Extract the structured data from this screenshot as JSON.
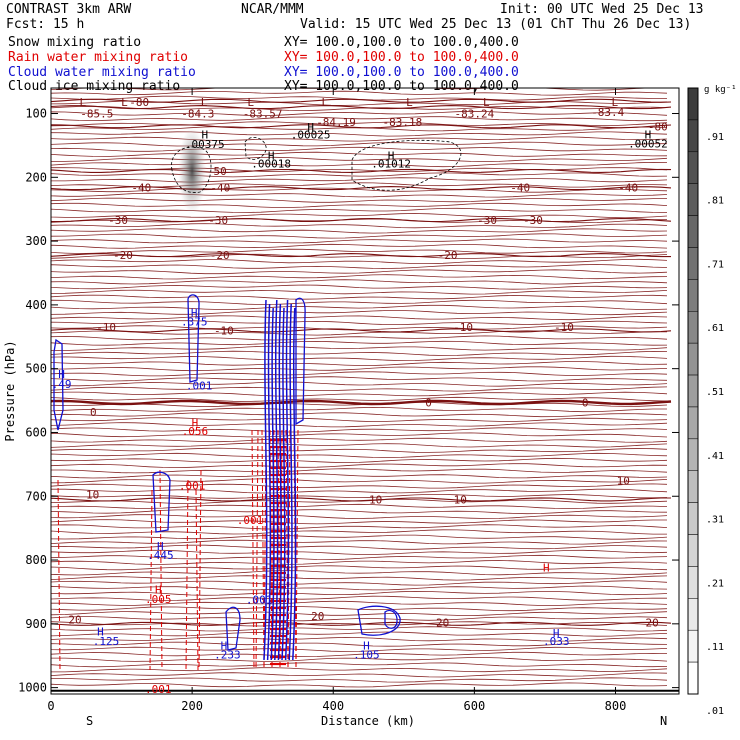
{
  "header": {
    "left_line1": "CONTRAST  3km ARW",
    "left_line2": "Fcst:    15 h",
    "center": "NCAR/MMM",
    "init": "Init: 00 UTC Wed 25 Dec 13",
    "valid": "Valid: 15 UTC Wed 25 Dec 13 (01 ChT Thu 26 Dec 13)",
    "fields": [
      {
        "name": "Snow mixing ratio",
        "xy": "XY= 100.0,100.0 to 100.0,400.0",
        "color": "#000000"
      },
      {
        "name": "Rain water mixing ratio",
        "xy": "XY= 100.0,100.0 to 100.0,400.0",
        "color": "#e00000"
      },
      {
        "name": "Cloud water mixing ratio",
        "xy": "XY= 100.0,100.0 to 100.0,400.0",
        "color": "#1010d0"
      },
      {
        "name": "Cloud ice mixing ratio",
        "xy": "XY= 100.0,100.0 to 100.0,400.0",
        "color": "#000000"
      }
    ]
  },
  "chart_data": {
    "type": "contour cross-section",
    "xlabel": "Distance (km)",
    "ylabel": "Pressure (hPa)",
    "xlim": [
      0,
      890
    ],
    "ylim": [
      1010,
      60
    ],
    "x_ticks": [
      0,
      200,
      400,
      600,
      800
    ],
    "y_ticks": [
      100,
      200,
      300,
      400,
      500,
      600,
      700,
      800,
      900,
      1000
    ],
    "x_end_labels": {
      "left": "S",
      "right": "N"
    },
    "temperature_contours": [
      {
        "label": "-85.5",
        "p": 80
      },
      {
        "label": "-80",
        "p": 90
      },
      {
        "label": "-80",
        "p": 120
      },
      {
        "label": "-50",
        "p": 190
      },
      {
        "label": "-40",
        "p": 217
      },
      {
        "label": "-30",
        "p": 267
      },
      {
        "label": "-20",
        "p": 322
      },
      {
        "label": "-10",
        "p": 440
      },
      {
        "label": "0",
        "p": 553
      },
      {
        "label": "10",
        "p": 705
      },
      {
        "label": "20",
        "p": 900
      }
    ],
    "temperature_labels": [
      {
        "text": "-85.5",
        "x": 65,
        "p": 100
      },
      {
        "text": "-80",
        "x": 125,
        "p": 82
      },
      {
        "text": "-84.3",
        "x": 208,
        "p": 100
      },
      {
        "text": "-83.57",
        "x": 300,
        "p": 100
      },
      {
        "text": "-84.19",
        "x": 404,
        "p": 113
      },
      {
        "text": "-83.18",
        "x": 498,
        "p": 113
      },
      {
        "text": "-83.24",
        "x": 600,
        "p": 100
      },
      {
        "text": "-83.4",
        "x": 789,
        "p": 98
      },
      {
        "text": "-80",
        "x": 860,
        "p": 120
      },
      {
        "text": "-50",
        "x": 235,
        "p": 190
      },
      {
        "text": "-40",
        "x": 128,
        "p": 216
      },
      {
        "text": "-40",
        "x": 240,
        "p": 216
      },
      {
        "text": "-40",
        "x": 665,
        "p": 216
      },
      {
        "text": "-40",
        "x": 818,
        "p": 216
      },
      {
        "text": "-30",
        "x": 95,
        "p": 267
      },
      {
        "text": "-30",
        "x": 237,
        "p": 267
      },
      {
        "text": "-30",
        "x": 618,
        "p": 267
      },
      {
        "text": "-30",
        "x": 683,
        "p": 267
      },
      {
        "text": "-20",
        "x": 102,
        "p": 322
      },
      {
        "text": "-20",
        "x": 239,
        "p": 322
      },
      {
        "text": "-20",
        "x": 562,
        "p": 322
      },
      {
        "text": "-10",
        "x": 78,
        "p": 435
      },
      {
        "text": "-10",
        "x": 245,
        "p": 440
      },
      {
        "text": "-10",
        "x": 584,
        "p": 435
      },
      {
        "text": "-10",
        "x": 727,
        "p": 435
      },
      {
        "text": "0",
        "x": 60,
        "p": 568
      },
      {
        "text": "0",
        "x": 535,
        "p": 553
      },
      {
        "text": "0",
        "x": 757,
        "p": 553
      },
      {
        "text": "10",
        "x": 59,
        "p": 697
      },
      {
        "text": "10",
        "x": 460,
        "p": 705
      },
      {
        "text": "10",
        "x": 580,
        "p": 705
      },
      {
        "text": "10",
        "x": 811,
        "p": 675
      },
      {
        "text": "20",
        "x": 34,
        "p": 893
      },
      {
        "text": "20",
        "x": 378,
        "p": 888
      },
      {
        "text": "20",
        "x": 555,
        "p": 898
      },
      {
        "text": "20",
        "x": 852,
        "p": 898
      }
    ],
    "max_labels": [
      {
        "text": "H",
        "x": 218,
        "p": 133,
        "color": "#000000"
      },
      {
        "text": ".00375",
        "x": 218,
        "p": 148,
        "color": "#000000"
      },
      {
        "text": "H",
        "x": 368,
        "p": 121,
        "color": "#000000"
      },
      {
        "text": ".00025",
        "x": 368,
        "p": 133,
        "color": "#000000"
      },
      {
        "text": "H",
        "x": 312,
        "p": 166,
        "color": "#000000"
      },
      {
        "text": ".00018",
        "x": 312,
        "p": 178,
        "color": "#000000"
      },
      {
        "text": "H",
        "x": 482,
        "p": 166,
        "color": "#000000"
      },
      {
        "text": ".01012",
        "x": 482,
        "p": 178,
        "color": "#000000"
      },
      {
        "text": "H",
        "x": 846,
        "p": 133,
        "color": "#000000"
      },
      {
        "text": ".00052",
        "x": 846,
        "p": 147,
        "color": "#000000"
      },
      {
        "text": "H",
        "x": 203,
        "p": 412,
        "color": "#1010d0"
      },
      {
        "text": ".375",
        "x": 203,
        "p": 426,
        "color": "#1010d0"
      },
      {
        "text": "H",
        "x": 15,
        "p": 508,
        "color": "#1010d0"
      },
      {
        "text": ".49",
        "x": 15,
        "p": 524,
        "color": "#1010d0"
      },
      {
        "text": ".001",
        "x": 210,
        "p": 526,
        "color": "#1010d0"
      },
      {
        "text": "H",
        "x": 155,
        "p": 778,
        "color": "#1010d0"
      },
      {
        "text": ".445",
        "x": 155,
        "p": 792,
        "color": "#1010d0"
      },
      {
        "text": "H",
        "x": 70,
        "p": 912,
        "color": "#1010d0"
      },
      {
        "text": ".125",
        "x": 78,
        "p": 927,
        "color": "#1010d0"
      },
      {
        "text": "H",
        "x": 245,
        "p": 934,
        "color": "#1010d0"
      },
      {
        "text": ".233",
        "x": 250,
        "p": 948,
        "color": "#1010d0"
      },
      {
        "text": "H",
        "x": 447,
        "p": 934,
        "color": "#1010d0"
      },
      {
        "text": ".105",
        "x": 447,
        "p": 948,
        "color": "#1010d0"
      },
      {
        "text": "H",
        "x": 716,
        "p": 914,
        "color": "#1010d0"
      },
      {
        "text": ".033",
        "x": 716,
        "p": 927,
        "color": "#1010d0"
      },
      {
        "text": ".001",
        "x": 295,
        "p": 862,
        "color": "#1010d0"
      },
      {
        "text": "H",
        "x": 204,
        "p": 584,
        "color": "#e00000"
      },
      {
        "text": ".056",
        "x": 204,
        "p": 598,
        "color": "#e00000"
      },
      {
        "text": ".001",
        "x": 200,
        "p": 683,
        "color": "#e00000"
      },
      {
        "text": ".001",
        "x": 282,
        "p": 737,
        "color": "#e00000"
      },
      {
        "text": "H",
        "x": 152,
        "p": 846,
        "color": "#e00000"
      },
      {
        "text": ".005",
        "x": 152,
        "p": 861,
        "color": "#e00000"
      },
      {
        "text": ".001",
        "x": 152,
        "p": 1002,
        "color": "#e00000"
      },
      {
        "text": "H",
        "x": 702,
        "p": 812,
        "color": "#e00000"
      }
    ],
    "colorbar": {
      "unit": "g kg⁻¹",
      "labels": [
        ".91",
        ".81",
        ".71",
        ".61",
        ".51",
        ".41",
        ".31",
        ".21",
        ".11",
        ".01"
      ],
      "levels": 19
    }
  }
}
